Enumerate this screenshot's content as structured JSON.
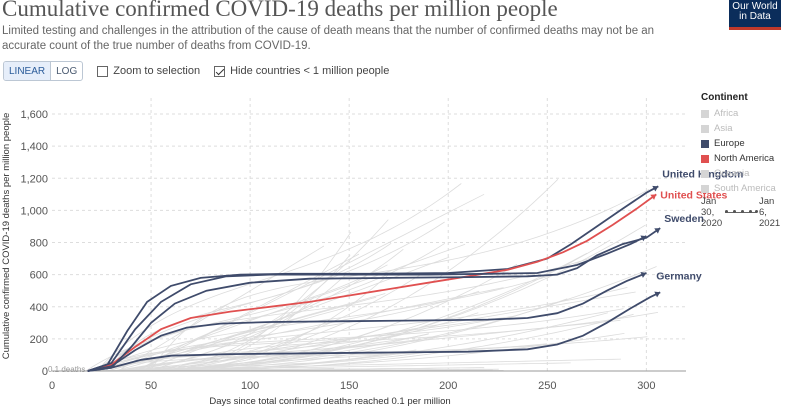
{
  "header": {
    "title": "Cumulative confirmed COVID-19 deaths per million people",
    "subtitle": "Limited testing and challenges in the attribution of the cause of death means that the number of confirmed deaths may not be an accurate count of the true number of deaths from COVID-19.",
    "logo_line1": "Our World",
    "logo_line2": "in Data"
  },
  "controls": {
    "linear_label": "LINEAR",
    "log_label": "LOG",
    "zoom_label": "Zoom to selection",
    "zoom_checked": false,
    "hide_label": "Hide countries < 1 million people",
    "hide_checked": true
  },
  "legend": {
    "title": "Continent",
    "items": [
      {
        "label": "Africa",
        "color": "#d5d5d5",
        "active": false
      },
      {
        "label": "Asia",
        "color": "#d5d5d5",
        "active": false
      },
      {
        "label": "Europe",
        "color": "#3f4b6b",
        "active": true
      },
      {
        "label": "North America",
        "color": "#e05050",
        "active": true
      },
      {
        "label": "Oceania",
        "color": "#d5d5d5",
        "active": false
      },
      {
        "label": "South America",
        "color": "#d5d5d5",
        "active": false
      }
    ]
  },
  "timeline": {
    "start_line1": "Jan",
    "start_line2": "30,",
    "start_line3": "2020",
    "end_line1": "Jan",
    "end_line2": "6,",
    "end_line3": "2021"
  },
  "chart_data": {
    "type": "line",
    "xlabel": "Days since total confirmed deaths reached 0.1 per million",
    "ylabel": "Cumulative confirmed COVID-19 deaths per million people",
    "xlim": [
      0,
      320
    ],
    "ylim": [
      0,
      1700
    ],
    "x_ticks": [
      0,
      50,
      100,
      150,
      200,
      250,
      300
    ],
    "y_ticks": [
      0,
      200,
      400,
      600,
      800,
      1000,
      1200,
      1400,
      1600
    ],
    "y_tick_labels": [
      "0",
      "200",
      "400",
      "600",
      "800",
      "1,000",
      "1,200",
      "1,400",
      "1,600"
    ],
    "grid": true,
    "start_annotation": "0.1 deaths",
    "highlighted_series": [
      {
        "name": "United Kingdom",
        "continent": "Europe",
        "color": "#3f4b6b",
        "labeled": true,
        "points": [
          [
            18,
            0
          ],
          [
            28,
            40
          ],
          [
            38,
            250
          ],
          [
            48,
            430
          ],
          [
            60,
            530
          ],
          [
            75,
            580
          ],
          [
            95,
            600
          ],
          [
            120,
            605
          ],
          [
            160,
            605
          ],
          [
            200,
            610
          ],
          [
            230,
            635
          ],
          [
            250,
            700
          ],
          [
            262,
            790
          ],
          [
            275,
            900
          ],
          [
            288,
            1010
          ],
          [
            300,
            1110
          ],
          [
            306,
            1150
          ]
        ]
      },
      {
        "name": "United States",
        "continent": "North America",
        "color": "#e05050",
        "labeled": true,
        "points": [
          [
            18,
            0
          ],
          [
            30,
            40
          ],
          [
            42,
            150
          ],
          [
            55,
            260
          ],
          [
            70,
            330
          ],
          [
            90,
            370
          ],
          [
            110,
            400
          ],
          [
            130,
            430
          ],
          [
            150,
            470
          ],
          [
            170,
            510
          ],
          [
            190,
            550
          ],
          [
            210,
            590
          ],
          [
            230,
            630
          ],
          [
            245,
            680
          ],
          [
            258,
            740
          ],
          [
            270,
            810
          ],
          [
            283,
            910
          ],
          [
            295,
            1010
          ],
          [
            305,
            1100
          ]
        ]
      },
      {
        "name": "Sweden",
        "continent": "Europe",
        "color": "#3f4b6b",
        "labeled": true,
        "points": [
          [
            18,
            0
          ],
          [
            30,
            20
          ],
          [
            40,
            150
          ],
          [
            50,
            300
          ],
          [
            62,
            420
          ],
          [
            78,
            500
          ],
          [
            100,
            550
          ],
          [
            130,
            575
          ],
          [
            170,
            580
          ],
          [
            210,
            585
          ],
          [
            240,
            590
          ],
          [
            255,
            600
          ],
          [
            265,
            640
          ],
          [
            275,
            720
          ],
          [
            288,
            790
          ],
          [
            300,
            830
          ],
          [
            307,
            890
          ]
        ]
      },
      {
        "name": "Germany",
        "continent": "Europe",
        "color": "#3f4b6b",
        "labeled": true,
        "points": [
          [
            18,
            0
          ],
          [
            30,
            20
          ],
          [
            45,
            70
          ],
          [
            60,
            95
          ],
          [
            90,
            105
          ],
          [
            130,
            110
          ],
          [
            170,
            115
          ],
          [
            210,
            120
          ],
          [
            240,
            135
          ],
          [
            255,
            165
          ],
          [
            268,
            220
          ],
          [
            280,
            300
          ],
          [
            292,
            390
          ],
          [
            302,
            460
          ],
          [
            307,
            490
          ]
        ]
      },
      {
        "name": "",
        "continent": "Europe",
        "color": "#3f4b6b",
        "labeled": false,
        "points": [
          [
            18,
            0
          ],
          [
            30,
            50
          ],
          [
            42,
            260
          ],
          [
            55,
            430
          ],
          [
            70,
            540
          ],
          [
            88,
            590
          ],
          [
            110,
            600
          ],
          [
            150,
            600
          ],
          [
            190,
            600
          ],
          [
            220,
            605
          ],
          [
            245,
            610
          ],
          [
            265,
            660
          ],
          [
            280,
            730
          ],
          [
            292,
            790
          ],
          [
            300,
            840
          ]
        ]
      },
      {
        "name": "",
        "continent": "Europe",
        "color": "#3f4b6b",
        "labeled": false,
        "points": [
          [
            18,
            0
          ],
          [
            30,
            30
          ],
          [
            42,
            130
          ],
          [
            55,
            220
          ],
          [
            68,
            270
          ],
          [
            85,
            295
          ],
          [
            110,
            305
          ],
          [
            150,
            310
          ],
          [
            190,
            315
          ],
          [
            220,
            320
          ],
          [
            240,
            330
          ],
          [
            255,
            360
          ],
          [
            268,
            420
          ],
          [
            280,
            500
          ],
          [
            290,
            560
          ],
          [
            300,
            610
          ]
        ]
      }
    ]
  }
}
